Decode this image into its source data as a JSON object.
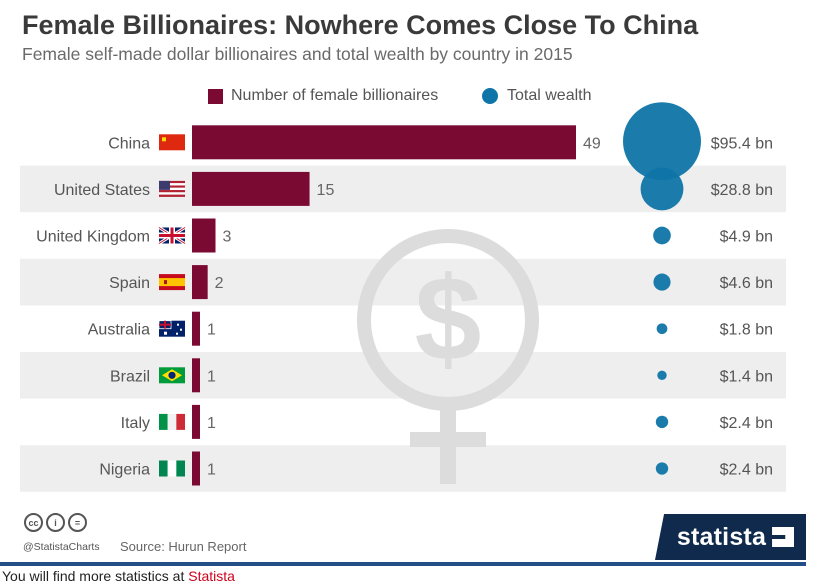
{
  "header": {
    "title": "Female Billionaires: Nowhere Comes Close To China",
    "subtitle": "Female self-made dollar billionaires and total wealth by country in 2015"
  },
  "legend": {
    "bars": "Number of female billionaires",
    "dots": "Total wealth"
  },
  "colors": {
    "bar": "#7b0a33",
    "dot": "#0f75a8",
    "row_alt": "#eeeeee",
    "watermark": "#dcdcdc",
    "brand_bg": "#0f2a4d",
    "footer_line": "#234f86"
  },
  "chart_data": {
    "type": "bar",
    "orientation": "horizontal",
    "title": "Female Billionaires: Nowhere Comes Close To China",
    "subtitle": "Female self-made dollar billionaires and total wealth by country in 2015",
    "categories": [
      "China",
      "United States",
      "United Kingdom",
      "Spain",
      "Australia",
      "Brazil",
      "Italy",
      "Nigeria"
    ],
    "flags": [
      "china-flag-icon",
      "us-flag-icon",
      "uk-flag-icon",
      "spain-flag-icon",
      "australia-flag-icon",
      "brazil-flag-icon",
      "italy-flag-icon",
      "nigeria-flag-icon"
    ],
    "series": [
      {
        "name": "Number of female billionaires",
        "values": [
          49,
          15,
          3,
          2,
          1,
          1,
          1,
          1
        ],
        "labels": [
          "49",
          "15",
          "3",
          "2",
          "1",
          "1",
          "1",
          "1"
        ]
      },
      {
        "name": "Total wealth",
        "values": [
          95.4,
          28.8,
          4.9,
          4.6,
          1.8,
          1.4,
          2.4,
          2.4
        ],
        "labels": [
          "$95.4 bn",
          "$28.8 bn",
          "$4.9 bn",
          "$4.6 bn",
          "$1.8 bn",
          "$1.4 bn",
          "$2.4 bn",
          "$2.4 bn"
        ],
        "unit": "$ bn"
      }
    ],
    "bar_max": 49,
    "grid": false,
    "legend_position": "top"
  },
  "footer": {
    "handle": "@StatistaCharts",
    "source": "Source: Hurun Report",
    "brand": "statista",
    "cc_icons": [
      "cc",
      "by",
      "nd"
    ]
  },
  "below": {
    "prefix": "You will find more statistics at ",
    "link": "Statista"
  }
}
